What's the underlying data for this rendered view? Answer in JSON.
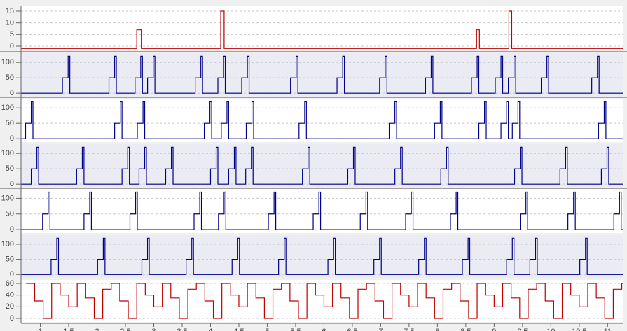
{
  "chart_data": {
    "type": "step",
    "xlim": [
      0.66,
      11.28
    ],
    "xticks": [
      1,
      1.5,
      2,
      2.5,
      3,
      3.5,
      4,
      4.5,
      5,
      5.5,
      6,
      6.5,
      7,
      7.5,
      8,
      8.5,
      9,
      9.5,
      10,
      10.5,
      11
    ],
    "grid": true,
    "panels": [
      {
        "ylim": [
          -1.8,
          17.4
        ],
        "yticks": [
          0,
          5,
          10,
          15
        ],
        "color": "#c00000",
        "background": "#ffffff",
        "x": [
          0.66,
          2.7,
          2.78,
          4.18,
          4.24,
          8.69,
          8.74,
          9.26,
          9.31
        ],
        "values": [
          -1,
          7,
          -1,
          15,
          -1,
          7,
          -1,
          15,
          -1
        ]
      },
      {
        "ylim": [
          -11,
          130
        ],
        "yticks": [
          0,
          50,
          100
        ],
        "color": "#00008b",
        "background": "#ebebf3",
        "x": [
          0.66,
          1.39,
          1.49,
          1.52,
          2.21,
          2.31,
          2.34,
          2.67,
          2.77,
          2.8,
          2.89,
          2.99,
          3.02,
          3.73,
          3.83,
          3.86,
          4.13,
          4.23,
          4.26,
          4.55,
          4.65,
          4.68,
          5.41,
          5.51,
          5.54,
          6.23,
          6.33,
          6.36,
          6.98,
          7.08,
          7.11,
          7.79,
          7.89,
          7.92,
          8.6,
          8.7,
          8.73,
          9.02,
          9.12,
          9.15,
          9.25,
          9.35,
          9.38,
          9.83,
          9.93,
          9.96,
          10.72,
          10.82,
          10.85
        ],
        "values": [
          0,
          50,
          120,
          0,
          50,
          120,
          0,
          50,
          120,
          0,
          50,
          120,
          0,
          50,
          120,
          0,
          50,
          120,
          0,
          50,
          120,
          0,
          50,
          120,
          0,
          50,
          120,
          0,
          50,
          120,
          0,
          50,
          120,
          0,
          50,
          120,
          0,
          50,
          120,
          0,
          50,
          120,
          0,
          50,
          120,
          0,
          50,
          120,
          0
        ]
      },
      {
        "ylim": [
          -11,
          130
        ],
        "yticks": [
          0,
          50,
          100
        ],
        "color": "#00008b",
        "background": "#ffffff",
        "x": [
          0.66,
          0.74,
          0.84,
          0.87,
          2.31,
          2.41,
          2.44,
          2.71,
          2.81,
          2.84,
          3.89,
          3.99,
          4.02,
          4.19,
          4.29,
          4.32,
          4.63,
          4.73,
          4.76,
          5.56,
          5.66,
          5.69,
          7.15,
          7.25,
          7.28,
          7.95,
          8.05,
          8.08,
          8.73,
          8.83,
          8.86,
          9.12,
          9.22,
          9.25,
          9.32,
          9.42,
          9.45,
          10.84,
          10.94,
          10.97
        ],
        "values": [
          0,
          50,
          120,
          0,
          50,
          120,
          0,
          50,
          120,
          0,
          50,
          120,
          0,
          50,
          120,
          0,
          50,
          120,
          0,
          50,
          120,
          0,
          50,
          120,
          0,
          50,
          120,
          0,
          50,
          120,
          0,
          50,
          120,
          0,
          50,
          120,
          0,
          50,
          120,
          0
        ]
      },
      {
        "ylim": [
          -11,
          130
        ],
        "yticks": [
          0,
          50,
          100
        ],
        "color": "#00008b",
        "background": "#ebebf3",
        "x": [
          0.66,
          0.84,
          0.94,
          0.97,
          1.64,
          1.74,
          1.77,
          2.44,
          2.54,
          2.57,
          2.74,
          2.84,
          2.87,
          3.21,
          3.31,
          3.34,
          4.0,
          4.1,
          4.13,
          4.32,
          4.42,
          4.45,
          4.62,
          4.72,
          4.75,
          5.62,
          5.72,
          5.75,
          6.42,
          6.52,
          6.55,
          7.25,
          7.35,
          7.38,
          8.06,
          8.16,
          8.19,
          9.36,
          9.46,
          9.49,
          10.16,
          10.26,
          10.29,
          10.89,
          10.99,
          11.02
        ],
        "values": [
          0,
          50,
          120,
          0,
          50,
          120,
          0,
          50,
          120,
          0,
          50,
          120,
          0,
          50,
          120,
          0,
          50,
          120,
          0,
          50,
          120,
          0,
          50,
          120,
          0,
          50,
          120,
          0,
          50,
          120,
          0,
          50,
          120,
          0,
          50,
          120,
          0,
          50,
          120,
          0,
          50,
          120,
          0,
          50,
          120,
          0
        ]
      },
      {
        "ylim": [
          -11,
          130
        ],
        "yticks": [
          0,
          50,
          100
        ],
        "color": "#00008b",
        "background": "#ffffff",
        "x": [
          0.66,
          1.04,
          1.14,
          1.17,
          1.77,
          1.87,
          1.9,
          2.58,
          2.68,
          2.71,
          3.71,
          3.81,
          3.84,
          4.14,
          4.24,
          4.27,
          5.02,
          5.12,
          5.15,
          5.81,
          5.91,
          5.94,
          6.64,
          6.74,
          6.77,
          7.44,
          7.54,
          7.57,
          8.23,
          8.33,
          8.36,
          9.46,
          9.56,
          9.59,
          10.3,
          10.4,
          10.43,
          11.11,
          11.21,
          11.24
        ],
        "values": [
          0,
          50,
          120,
          0,
          50,
          120,
          0,
          50,
          120,
          0,
          50,
          120,
          0,
          50,
          120,
          0,
          50,
          120,
          0,
          50,
          120,
          0,
          50,
          120,
          0,
          50,
          120,
          0,
          50,
          120,
          0,
          50,
          120,
          0,
          50,
          120,
          0,
          50,
          120,
          0
        ]
      },
      {
        "ylim": [
          -11,
          130
        ],
        "yticks": [
          0,
          50,
          100
        ],
        "color": "#00008b",
        "background": "#ebebf3",
        "x": [
          0.66,
          1.19,
          1.29,
          1.32,
          2.01,
          2.11,
          2.14,
          2.79,
          2.89,
          2.92,
          3.57,
          3.67,
          3.7,
          4.38,
          4.48,
          4.51,
          5.2,
          5.3,
          5.33,
          6.07,
          6.17,
          6.2,
          6.88,
          6.98,
          7.01,
          7.67,
          7.77,
          7.8,
          8.44,
          8.54,
          8.57,
          9.22,
          9.32,
          9.35,
          9.63,
          9.73,
          9.76,
          10.51,
          10.61,
          10.64
        ],
        "values": [
          0,
          50,
          120,
          0,
          50,
          120,
          0,
          50,
          120,
          0,
          50,
          120,
          0,
          50,
          120,
          0,
          50,
          120,
          0,
          50,
          120,
          0,
          50,
          120,
          0,
          50,
          120,
          0,
          50,
          120,
          0,
          50,
          120,
          0,
          50,
          120,
          0,
          50,
          120,
          0
        ]
      },
      {
        "ylim": [
          -6,
          66
        ],
        "yticks": [
          0,
          20,
          40,
          60
        ],
        "color": "#c00000",
        "background": "#ffffff",
        "x": [
          0.75,
          0.9,
          1.05,
          1.2,
          1.35,
          1.5,
          1.65,
          1.8,
          1.95,
          2.1,
          2.25,
          2.4,
          2.55,
          2.7,
          2.85,
          3.0,
          3.15,
          3.3,
          3.45,
          3.6,
          3.75,
          3.9,
          4.05,
          4.2,
          4.35,
          4.5,
          4.65,
          4.8,
          4.95,
          5.1,
          5.25,
          5.4,
          5.55,
          5.7,
          5.85,
          6.0,
          6.15,
          6.3,
          6.45,
          6.6,
          6.75,
          6.9,
          7.05,
          7.2,
          7.35,
          7.5,
          7.65,
          7.8,
          7.95,
          8.1,
          8.25,
          8.4,
          8.55,
          8.7,
          8.85,
          9.0,
          9.15,
          9.3,
          9.45,
          9.6,
          9.75,
          9.9,
          10.05,
          10.2,
          10.35,
          10.5,
          10.65,
          10.8,
          10.95,
          11.1,
          11.25
        ],
        "values": [
          60,
          30,
          0,
          60,
          40,
          20,
          60,
          35,
          0,
          50,
          60,
          30,
          0,
          60,
          40,
          20,
          60,
          35,
          0,
          50,
          60,
          30,
          0,
          60,
          40,
          20,
          60,
          35,
          0,
          50,
          60,
          30,
          0,
          60,
          40,
          20,
          60,
          35,
          0,
          50,
          60,
          30,
          0,
          60,
          40,
          20,
          60,
          35,
          0,
          50,
          60,
          30,
          0,
          60,
          40,
          20,
          60,
          35,
          0,
          50,
          60,
          30,
          0,
          60,
          40,
          20,
          60,
          35,
          0,
          50,
          60
        ]
      }
    ]
  }
}
